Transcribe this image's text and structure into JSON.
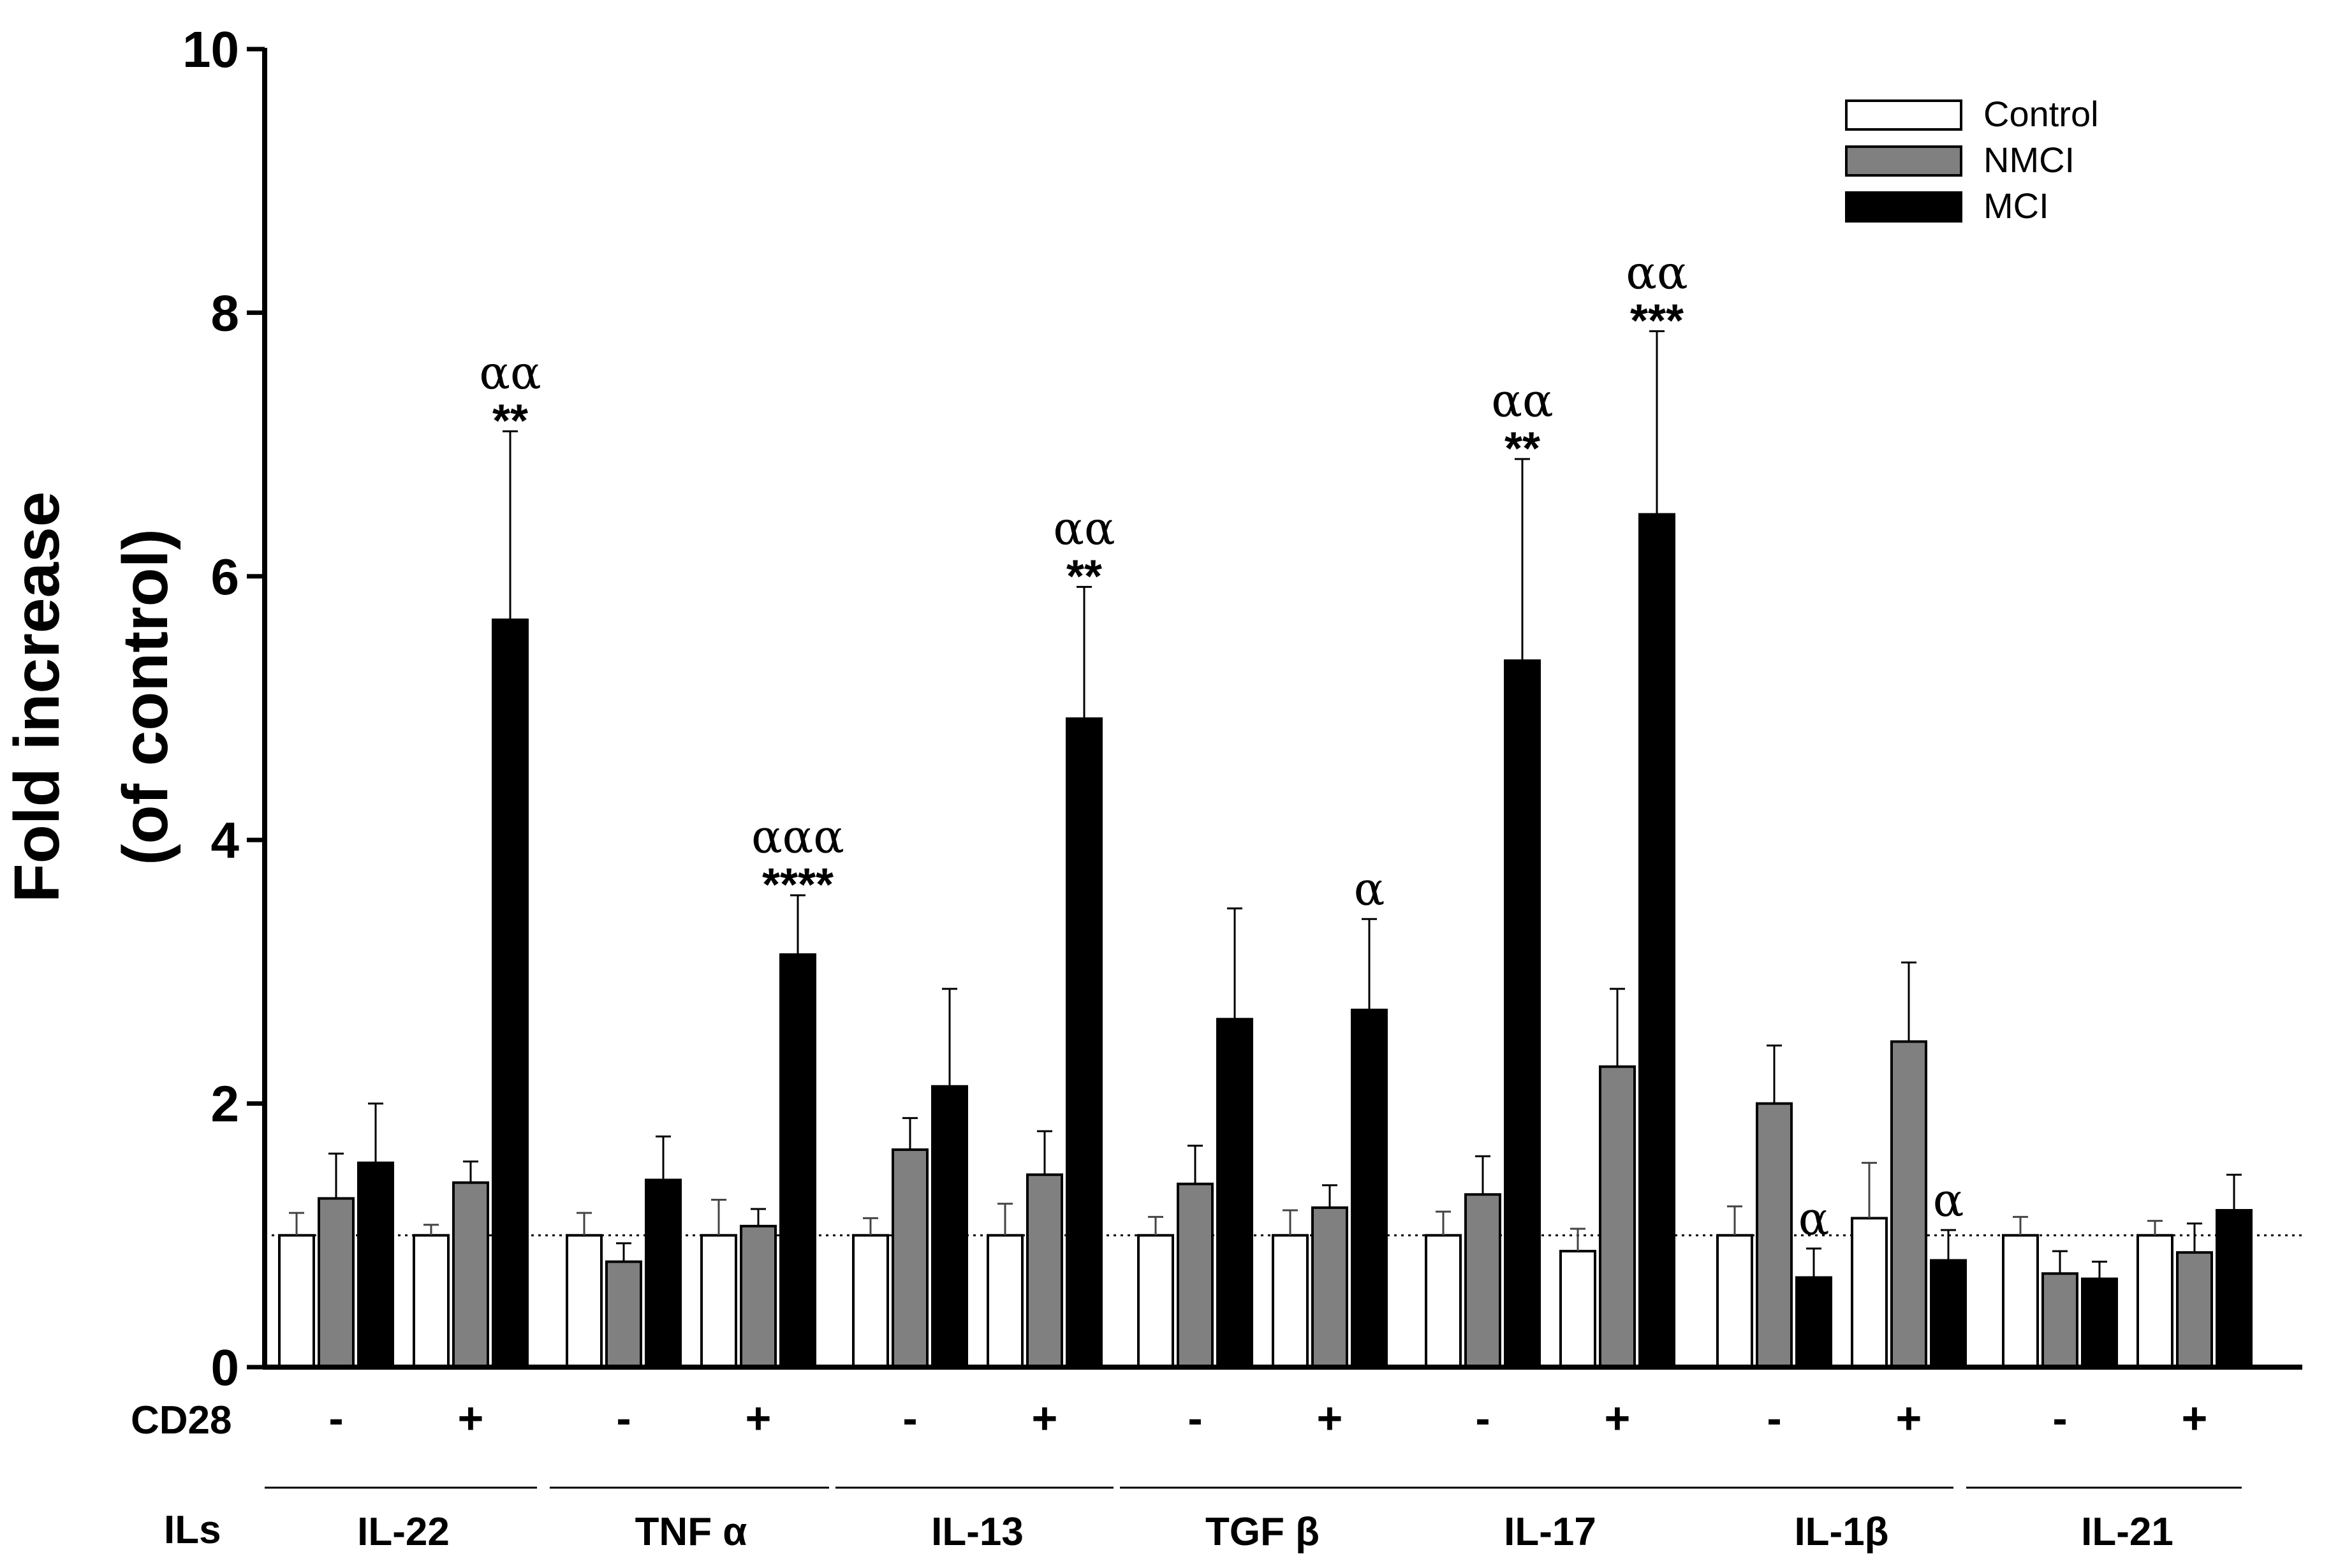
{
  "chart_data": {
    "type": "bar",
    "title": "",
    "ylabel_line1": "Fold increase",
    "ylabel_line2": "(of control)",
    "ylim": [
      0,
      10
    ],
    "yticks": [
      "0",
      "2",
      "4",
      "6",
      "8",
      "10"
    ],
    "reference_line": 1,
    "row_labels": {
      "cd28": "CD28",
      "ils": "ILs"
    },
    "series": [
      {
        "name": "Control",
        "color": "#ffffff"
      },
      {
        "name": "NMCI",
        "color": "#808080"
      },
      {
        "name": "MCI",
        "color": "#000000"
      }
    ],
    "legend_position": "top-right",
    "groups": [
      {
        "label": "IL-22",
        "subgroups": [
          {
            "cd28": "-",
            "values": [
              1.0,
              1.28,
              1.55
            ],
            "errors": [
              0.17,
              0.34,
              0.45
            ],
            "annotations": [
              [],
              [],
              []
            ]
          },
          {
            "cd28": "+",
            "values": [
              1.0,
              1.4,
              5.67
            ],
            "errors": [
              0.08,
              0.16,
              1.43
            ],
            "annotations": [
              [],
              [],
              [
                "αα",
                "**"
              ]
            ]
          }
        ]
      },
      {
        "label": "TNF α",
        "subgroups": [
          {
            "cd28": "-",
            "values": [
              1.0,
              0.8,
              1.42
            ],
            "errors": [
              0.17,
              0.14,
              0.33
            ],
            "annotations": [
              [],
              [],
              []
            ]
          },
          {
            "cd28": "+",
            "values": [
              1.0,
              1.07,
              3.13
            ],
            "errors": [
              0.27,
              0.13,
              0.45
            ],
            "annotations": [
              [],
              [],
              [
                "ααα",
                "****"
              ]
            ]
          }
        ]
      },
      {
        "label": "IL-13",
        "subgroups": [
          {
            "cd28": "-",
            "values": [
              1.0,
              1.65,
              2.13
            ],
            "errors": [
              0.13,
              0.24,
              0.74
            ],
            "annotations": [
              [],
              [],
              []
            ]
          },
          {
            "cd28": "+",
            "values": [
              1.0,
              1.46,
              4.92
            ],
            "errors": [
              0.24,
              0.33,
              1.0
            ],
            "annotations": [
              [],
              [],
              [
                "αα",
                "**"
              ]
            ]
          }
        ]
      },
      {
        "label": "TGF β",
        "subgroups": [
          {
            "cd28": "-",
            "values": [
              1.0,
              1.39,
              2.64
            ],
            "errors": [
              0.14,
              0.29,
              0.84
            ],
            "annotations": [
              [],
              [],
              []
            ]
          },
          {
            "cd28": "+",
            "values": [
              1.0,
              1.21,
              2.71
            ],
            "errors": [
              0.19,
              0.17,
              0.69
            ],
            "annotations": [
              [],
              [],
              [
                "α"
              ]
            ]
          }
        ]
      },
      {
        "label": "IL-17",
        "subgroups": [
          {
            "cd28": "-",
            "values": [
              1.0,
              1.31,
              5.36
            ],
            "errors": [
              0.18,
              0.29,
              1.53
            ],
            "annotations": [
              [],
              [],
              [
                "αα",
                "**"
              ]
            ]
          },
          {
            "cd28": "+",
            "values": [
              0.88,
              2.28,
              6.47
            ],
            "errors": [
              0.17,
              0.59,
              1.39
            ],
            "annotations": [
              [],
              [],
              [
                "αα",
                "***"
              ]
            ]
          }
        ]
      },
      {
        "label": "IL-1β",
        "subgroups": [
          {
            "cd28": "-",
            "values": [
              1.0,
              2.0,
              0.68
            ],
            "errors": [
              0.22,
              0.44,
              0.22
            ],
            "annotations": [
              [],
              [],
              [
                "α"
              ]
            ]
          },
          {
            "cd28": "+",
            "values": [
              1.13,
              2.47,
              0.81
            ],
            "errors": [
              0.42,
              0.6,
              0.23
            ],
            "annotations": [
              [],
              [],
              [
                "α"
              ]
            ]
          }
        ]
      },
      {
        "label": "IL-21",
        "subgroups": [
          {
            "cd28": "-",
            "values": [
              1.0,
              0.71,
              0.67
            ],
            "errors": [
              0.14,
              0.17,
              0.13
            ],
            "annotations": [
              [],
              [],
              []
            ]
          },
          {
            "cd28": "+",
            "values": [
              1.0,
              0.87,
              1.19
            ],
            "errors": [
              0.11,
              0.22,
              0.27
            ],
            "annotations": [
              [],
              [],
              []
            ]
          }
        ]
      }
    ]
  }
}
